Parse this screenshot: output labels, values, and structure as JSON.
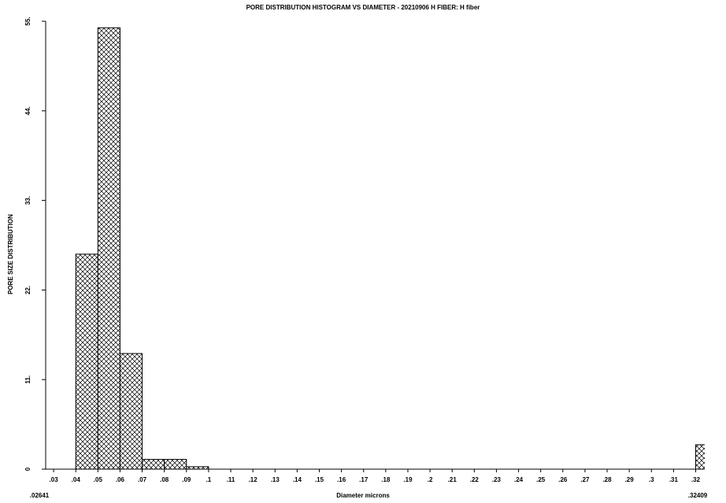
{
  "chart_data": {
    "type": "histogram",
    "title": "PORE DISTRIBUTION HISTOGRAM VS DIAMETER - 20210906 H FIBER: H fiber",
    "x_label": "Diameter microns",
    "y_label": "PORE SIZE DISTRIBUTION",
    "bins": [
      0.03,
      0.04,
      0.05,
      0.06,
      0.07,
      0.08,
      0.09,
      0.1,
      0.11,
      0.12,
      0.13,
      0.14,
      0.15,
      0.16,
      0.17,
      0.18,
      0.19,
      0.2,
      0.21,
      0.22,
      0.23,
      0.24,
      0.25,
      0.26,
      0.27,
      0.28,
      0.29,
      0.3,
      0.31,
      0.32,
      0.33
    ],
    "values": [
      0,
      26.4,
      54.2,
      14.2,
      1.2,
      1.2,
      0.3,
      0,
      0,
      0,
      0,
      0,
      0,
      0,
      0,
      0,
      0,
      0,
      0,
      0,
      0,
      0,
      0,
      0,
      0,
      0,
      0,
      0,
      0,
      3.0
    ],
    "color": "#000000",
    "xlim": [
      0.02641,
      0.32409
    ],
    "xlim_labels": [
      ".02641",
      ".32409"
    ],
    "xticks": [
      {
        "value": 0.03,
        "label": ".03"
      },
      {
        "value": 0.04,
        "label": ".04"
      },
      {
        "value": 0.05,
        "label": ".05"
      },
      {
        "value": 0.06,
        "label": ".06"
      },
      {
        "value": 0.07,
        "label": ".07"
      },
      {
        "value": 0.08,
        "label": ".08"
      },
      {
        "value": 0.09,
        "label": ".09"
      },
      {
        "value": 0.1,
        "label": ".1"
      },
      {
        "value": 0.11,
        "label": ".11"
      },
      {
        "value": 0.12,
        "label": ".12"
      },
      {
        "value": 0.13,
        "label": ".13"
      },
      {
        "value": 0.14,
        "label": ".14"
      },
      {
        "value": 0.15,
        "label": ".15"
      },
      {
        "value": 0.16,
        "label": ".16"
      },
      {
        "value": 0.17,
        "label": ".17"
      },
      {
        "value": 0.18,
        "label": ".18"
      },
      {
        "value": 0.19,
        "label": ".19"
      },
      {
        "value": 0.2,
        "label": ".2"
      },
      {
        "value": 0.21,
        "label": ".21"
      },
      {
        "value": 0.22,
        "label": ".22"
      },
      {
        "value": 0.23,
        "label": ".23"
      },
      {
        "value": 0.24,
        "label": ".24"
      },
      {
        "value": 0.25,
        "label": ".25"
      },
      {
        "value": 0.26,
        "label": ".26"
      },
      {
        "value": 0.27,
        "label": ".27"
      },
      {
        "value": 0.28,
        "label": ".28"
      },
      {
        "value": 0.29,
        "label": ".29"
      },
      {
        "value": 0.3,
        "label": ".3"
      },
      {
        "value": 0.31,
        "label": ".31"
      },
      {
        "value": 0.32,
        "label": ".32"
      }
    ],
    "ylim": [
      0,
      55
    ],
    "yticks": [
      0,
      {
        "value": 11,
        "label": "11."
      },
      {
        "value": 22,
        "label": "22."
      },
      {
        "value": 33,
        "label": "33."
      },
      {
        "value": 44,
        "label": "44."
      },
      {
        "value": 55,
        "label": "55."
      }
    ]
  }
}
